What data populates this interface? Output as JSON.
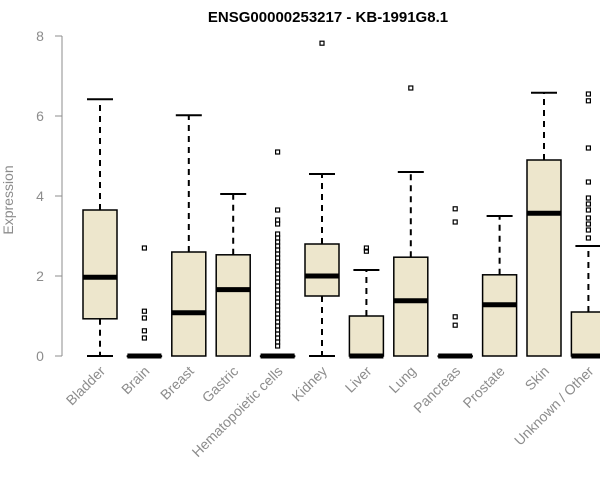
{
  "chart_data": {
    "type": "boxplot",
    "title": "ENSG00000253217 - KB-1991G8.1",
    "xlabel": "",
    "ylabel": "Expression",
    "ylim": [
      0,
      8
    ],
    "yticks": [
      0,
      2,
      4,
      6,
      8
    ],
    "colors": {
      "box_fill": "#ede6cc",
      "stroke": "#000000",
      "axis": "#8c8c8c"
    },
    "categories": [
      "Bladder",
      "Brain",
      "Breast",
      "Gastric",
      "Hematopoietic cells",
      "Kidney",
      "Liver",
      "Lung",
      "Pancreas",
      "Prostate",
      "Skin",
      "Unknown / Other"
    ],
    "boxes": [
      {
        "name": "Bladder",
        "whisker_low": 0,
        "q1": 0.93,
        "median": 1.97,
        "q3": 3.65,
        "whisker_high": 6.42,
        "outliers": []
      },
      {
        "name": "Brain",
        "whisker_low": 0,
        "q1": 0,
        "median": 0,
        "q3": 0,
        "whisker_high": 0,
        "outliers": [
          2.7,
          1.12,
          0.95,
          0.63,
          0.45
        ]
      },
      {
        "name": "Breast",
        "whisker_low": 0,
        "q1": 0,
        "median": 1.08,
        "q3": 2.6,
        "whisker_high": 6.02,
        "outliers": []
      },
      {
        "name": "Gastric",
        "whisker_low": 0,
        "q1": 0,
        "median": 1.66,
        "q3": 2.53,
        "whisker_high": 4.05,
        "outliers": []
      },
      {
        "name": "Hematopoietic cells",
        "whisker_low": 0,
        "q1": 0,
        "median": 0,
        "q3": 0,
        "whisker_high": 0,
        "outliers": [
          5.1,
          3.65,
          3.4,
          3.3,
          3.05,
          2.95,
          2.85,
          2.75,
          2.65,
          2.55,
          2.45,
          2.35,
          2.25,
          2.15,
          2.05,
          1.95,
          1.85,
          1.75,
          1.65,
          1.55,
          1.45,
          1.35,
          1.25,
          1.15,
          1.05,
          0.95,
          0.85,
          0.75,
          0.65,
          0.55,
          0.45,
          0.35,
          0.25
        ]
      },
      {
        "name": "Kidney",
        "whisker_low": 0,
        "q1": 1.5,
        "median": 2.0,
        "q3": 2.8,
        "whisker_high": 4.55,
        "outliers": [
          7.82
        ]
      },
      {
        "name": "Liver",
        "whisker_low": 0,
        "q1": 0,
        "median": 0,
        "q3": 1.0,
        "whisker_high": 2.15,
        "outliers": [
          2.7,
          2.62
        ]
      },
      {
        "name": "Lung",
        "whisker_low": 0,
        "q1": 0,
        "median": 1.38,
        "q3": 2.47,
        "whisker_high": 4.6,
        "outliers": [
          6.7
        ]
      },
      {
        "name": "Pancreas",
        "whisker_low": 0,
        "q1": 0,
        "median": 0,
        "q3": 0,
        "whisker_high": 0,
        "outliers": [
          3.68,
          3.35,
          0.98,
          0.77
        ]
      },
      {
        "name": "Prostate",
        "whisker_low": 0,
        "q1": 0,
        "median": 1.28,
        "q3": 2.03,
        "whisker_high": 3.5,
        "outliers": []
      },
      {
        "name": "Skin",
        "whisker_low": 0,
        "q1": 0,
        "median": 3.57,
        "q3": 4.9,
        "whisker_high": 6.58,
        "outliers": []
      },
      {
        "name": "Unknown / Other",
        "whisker_low": 0,
        "q1": 0,
        "median": 0,
        "q3": 1.1,
        "whisker_high": 2.75,
        "outliers": [
          6.55,
          6.38,
          5.2,
          4.35,
          3.95,
          3.8,
          3.65,
          3.45,
          3.3,
          3.15,
          2.95
        ]
      }
    ]
  }
}
